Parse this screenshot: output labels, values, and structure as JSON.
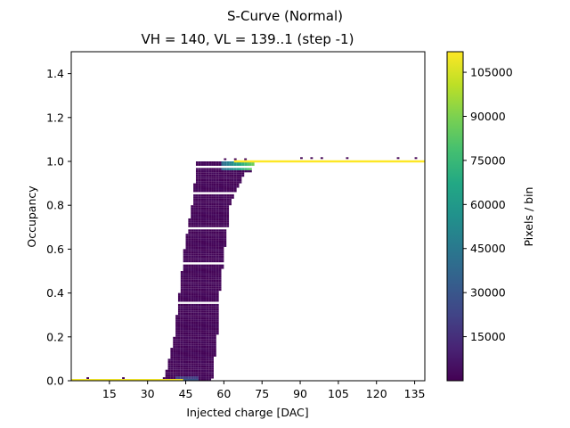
{
  "chart_data": {
    "type": "heatmap",
    "title": "S-Curve (Normal)",
    "subtitle": "VH = 140, VL = 139..1 (step -1)",
    "xlabel": "Injected charge [DAC]",
    "ylabel": "Occupancy",
    "xlim": [
      0,
      139
    ],
    "ylim": [
      0,
      1.5
    ],
    "xticks": [
      15,
      30,
      45,
      60,
      75,
      90,
      105,
      120,
      135
    ],
    "yticks": [
      0.0,
      0.2,
      0.4,
      0.6,
      0.8,
      1.0,
      1.2,
      1.4
    ],
    "colorbar": {
      "label": "Pixels / bin",
      "colormap": "viridis",
      "range": [
        0,
        112000
      ],
      "ticks": [
        15000,
        30000,
        45000,
        60000,
        75000,
        90000,
        105000
      ]
    },
    "plateau_low": {
      "y": 0.0,
      "x_range": [
        0,
        46
      ],
      "count": 110000
    },
    "plateau_high": {
      "y": 1.0,
      "x_range": [
        64,
        139
      ],
      "count": 112000
    },
    "transition": {
      "description_points": [
        [
          37,
          0.0
        ],
        [
          39,
          0.1
        ],
        [
          41,
          0.2
        ],
        [
          43,
          0.4
        ],
        [
          45,
          0.6
        ],
        [
          48,
          0.8
        ],
        [
          50,
          1.0
        ]
      ],
      "upper_points": [
        [
          57,
          0.0
        ],
        [
          59,
          0.2
        ],
        [
          60,
          0.4
        ],
        [
          62,
          0.6
        ],
        [
          64,
          0.8
        ],
        [
          72,
          1.0
        ]
      ],
      "typical_count": 3000
    }
  }
}
